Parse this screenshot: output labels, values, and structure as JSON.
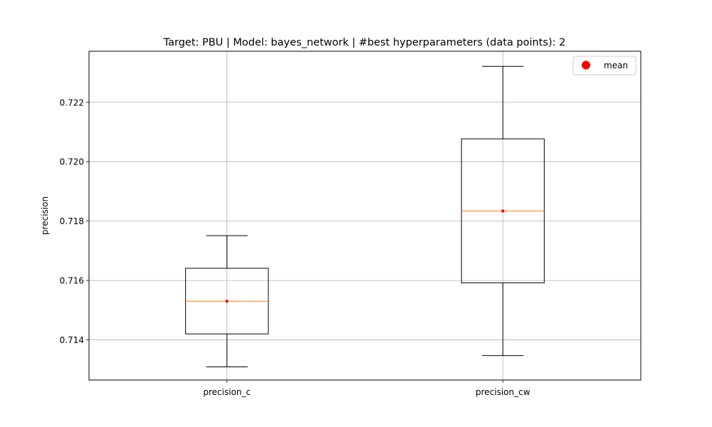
{
  "chart_data": {
    "type": "box",
    "title": "Target: PBU | Model: bayes_network | #best hyperparameters (data points): 2",
    "xlabel": "",
    "ylabel": "precision",
    "categories": [
      "precision_c",
      "precision_cw"
    ],
    "boxes": [
      {
        "name": "precision_c",
        "whisker_low": 0.71309,
        "q1": 0.7142,
        "median": 0.7153,
        "q3": 0.71641,
        "whisker_high": 0.71751,
        "mean": 0.7153
      },
      {
        "name": "precision_cw",
        "whisker_low": 0.71347,
        "q1": 0.71592,
        "median": 0.71834,
        "q3": 0.72077,
        "whisker_high": 0.72321,
        "mean": 0.71834
      }
    ],
    "yticks": [
      0.714,
      0.716,
      0.718,
      0.72,
      0.722
    ],
    "ytick_labels": [
      "0.714",
      "0.716",
      "0.718",
      "0.720",
      "0.722"
    ],
    "ylim": [
      0.712647,
      0.72372
    ],
    "grid": true,
    "legend": {
      "entries": [
        "mean"
      ],
      "placement": "top-right"
    },
    "colors": {
      "median": "#ff7f0e",
      "mean": "#ff0000",
      "box": "#000000",
      "grid": "#b0b0b0"
    }
  }
}
